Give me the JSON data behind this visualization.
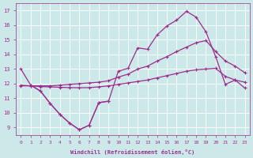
{
  "line_zigzag_x": [
    0,
    1,
    2,
    3,
    4,
    5,
    6,
    7,
    8,
    9,
    10,
    11,
    12,
    13,
    14,
    15,
    16,
    17,
    18,
    19,
    20,
    21,
    22,
    23
  ],
  "line_zigzag_y": [
    13.0,
    11.9,
    11.5,
    10.65,
    9.9,
    9.3,
    8.85,
    9.15,
    10.7,
    10.8,
    12.85,
    13.05,
    14.45,
    14.35,
    15.35,
    15.95,
    16.35,
    16.95,
    16.55,
    15.55,
    13.85,
    11.95,
    12.25,
    11.7
  ],
  "line_upper_x": [
    0,
    1,
    2,
    3,
    4,
    5,
    6,
    7,
    8,
    9,
    10,
    11,
    12,
    13,
    14,
    15,
    16,
    17,
    18,
    19,
    20,
    21,
    22,
    23
  ],
  "line_upper_y": [
    11.85,
    11.85,
    11.85,
    11.85,
    11.9,
    11.95,
    12.0,
    12.05,
    12.1,
    12.2,
    12.45,
    12.65,
    13.0,
    13.2,
    13.55,
    13.85,
    14.2,
    14.5,
    14.8,
    14.95,
    14.2,
    13.55,
    13.2,
    12.75
  ],
  "line_dip_x": [
    1,
    2,
    3,
    4,
    5,
    6,
    7,
    8,
    9
  ],
  "line_dip_y": [
    11.9,
    11.5,
    10.65,
    9.9,
    9.3,
    8.85,
    9.15,
    10.7,
    10.8
  ],
  "line_flat_x": [
    0,
    1,
    2,
    3,
    4,
    5,
    6,
    7,
    8,
    9,
    10,
    11,
    12,
    13,
    14,
    15,
    16,
    17,
    18,
    19,
    20,
    21,
    22,
    23
  ],
  "line_flat_y": [
    11.9,
    11.85,
    11.8,
    11.78,
    11.75,
    11.73,
    11.72,
    11.73,
    11.78,
    11.85,
    11.95,
    12.05,
    12.15,
    12.25,
    12.4,
    12.55,
    12.7,
    12.85,
    12.95,
    13.0,
    13.05,
    12.5,
    12.25,
    12.1
  ],
  "line_color": "#9b2d8e",
  "bg_color": "#cde8e8",
  "grid_color": "#ffffff",
  "xlabel": "Windchill (Refroidissement éolien,°C)",
  "xlim": [
    -0.5,
    23.5
  ],
  "ylim": [
    8.5,
    17.5
  ],
  "yticks": [
    9,
    10,
    11,
    12,
    13,
    14,
    15,
    16,
    17
  ],
  "xticks": [
    0,
    1,
    2,
    3,
    4,
    5,
    6,
    7,
    8,
    9,
    10,
    11,
    12,
    13,
    14,
    15,
    16,
    17,
    18,
    19,
    20,
    21,
    22,
    23
  ]
}
